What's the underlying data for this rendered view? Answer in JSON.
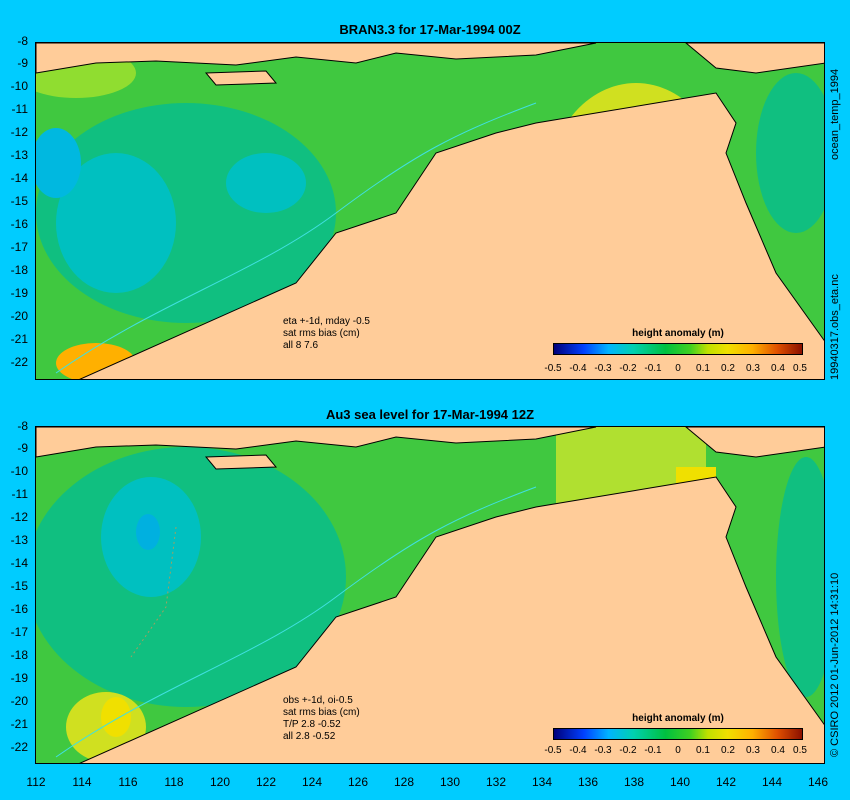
{
  "top_panel": {
    "title": "BRAN3.3 for 17-Mar-1994 00Z",
    "side_label_top": "ocean_temp_1994",
    "side_label_bottom": "19940317.obs_eta.nc",
    "annotations": [
      "eta +-1d, mday -0.5",
      "sat rms bias (cm)",
      "all 8 7.6"
    ],
    "colorbar_title": "height anomaly (m)"
  },
  "bottom_panel": {
    "title": "Au3 sea level  for 17-Mar-1994 12Z",
    "side_label": "© CSIRO 2012  01-Jun-2012 14:31:10",
    "annotations": [
      "obs +-1d, oi-0.5",
      "sat rms bias (cm)",
      "T/P  2.8 -0.52",
      "all 2.8 -0.52"
    ],
    "colorbar_title": "height anomaly (m)"
  },
  "y_ticks": [
    "-8",
    "-9",
    "-10",
    "-11",
    "-12",
    "-13",
    "-14",
    "-15",
    "-16",
    "-17",
    "-18",
    "-19",
    "-20",
    "-21",
    "-22"
  ],
  "x_ticks": [
    "112",
    "114",
    "116",
    "118",
    "120",
    "122",
    "124",
    "126",
    "128",
    "130",
    "132",
    "134",
    "136",
    "138",
    "140",
    "142",
    "144",
    "146"
  ],
  "colorbar_labels": [
    "-0.5",
    "-0.4",
    "-0.3",
    "-0.2",
    "-0.1",
    "0",
    "0.1",
    "0.2",
    "0.3",
    "0.4",
    "0.5"
  ],
  "colors": {
    "background": "#00ccff",
    "land": "#ffcc99",
    "ocean": "#33cc33"
  }
}
